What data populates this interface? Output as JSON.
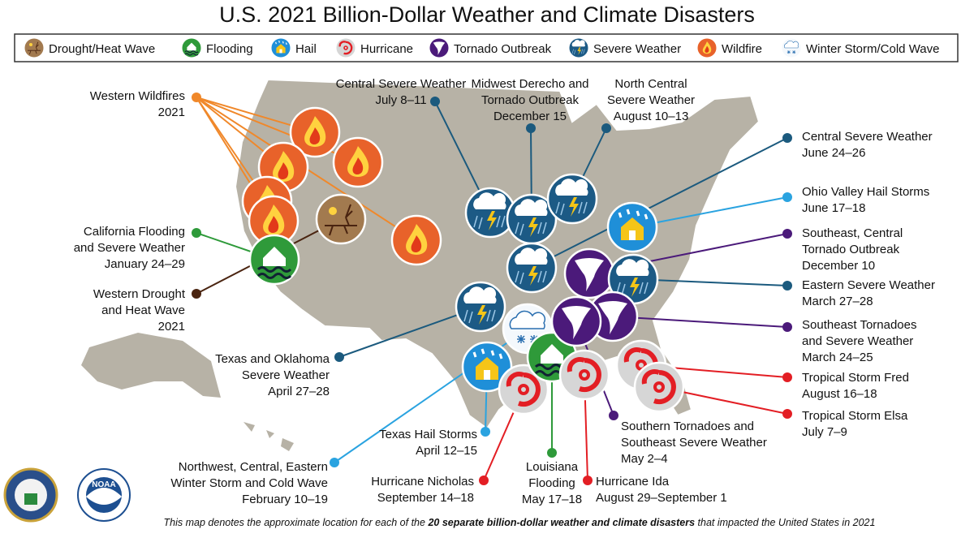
{
  "title": "U.S. 2021 Billion-Dollar Weather and Climate Disasters",
  "legend": [
    "Drought/Heat Wave",
    "Flooding",
    "Hail",
    "Hurricane",
    "Tornado Outbreak",
    "Severe Weather",
    "Wildfire",
    "Winter Storm/Cold Wave"
  ],
  "events": [
    {
      "lines": [
        "Western Wildfires",
        "2021"
      ]
    },
    {
      "lines": [
        "Central Severe Weather",
        "July 8–11"
      ]
    },
    {
      "lines": [
        "Midwest Derecho and",
        "Tornado Outbreak",
        "December 15"
      ]
    },
    {
      "lines": [
        "North Central",
        "Severe Weather",
        "August 10–13"
      ]
    },
    {
      "lines": [
        "Central Severe Weather",
        "June 24–26"
      ]
    },
    {
      "lines": [
        "Ohio Valley Hail Storms",
        "June 17–18"
      ]
    },
    {
      "lines": [
        "Southeast, Central",
        "Tornado Outbreak",
        "December 10"
      ]
    },
    {
      "lines": [
        "Eastern Severe Weather",
        "March 27–28"
      ]
    },
    {
      "lines": [
        "Southeast Tornadoes",
        "and Severe Weather",
        "March 24–25"
      ]
    },
    {
      "lines": [
        "Tropical Storm Fred",
        "August 16–18"
      ]
    },
    {
      "lines": [
        "Tropical Storm Elsa",
        "July 7–9"
      ]
    },
    {
      "lines": [
        "California Flooding",
        "and Severe Weather",
        "January 24–29"
      ]
    },
    {
      "lines": [
        "Western Drought",
        "and Heat Wave",
        "2021"
      ]
    },
    {
      "lines": [
        "Texas and Oklahoma",
        "Severe Weather",
        "April 27–28"
      ]
    },
    {
      "lines": [
        "Texas Hail Storms",
        "April 12–15"
      ]
    },
    {
      "lines": [
        "Northwest, Central, Eastern",
        "Winter Storm and Cold Wave",
        "February 10–19"
      ]
    },
    {
      "lines": [
        "Hurricane Nicholas",
        "September 14–18"
      ]
    },
    {
      "lines": [
        "Louisiana",
        "Flooding",
        "May 17–18"
      ]
    },
    {
      "lines": [
        "Hurricane Ida",
        "August 29–September 1"
      ]
    },
    {
      "lines": [
        "Southern Tornadoes and",
        "Southeast Severe Weather",
        "May 2–4"
      ]
    }
  ],
  "footer": {
    "before": "This map denotes the approximate location for each of the",
    "bold": "20 separate billion-dollar weather and climate disasters",
    "after": "that impacted the United States in 2021"
  },
  "logos": {
    "noaa": "NOAA"
  }
}
